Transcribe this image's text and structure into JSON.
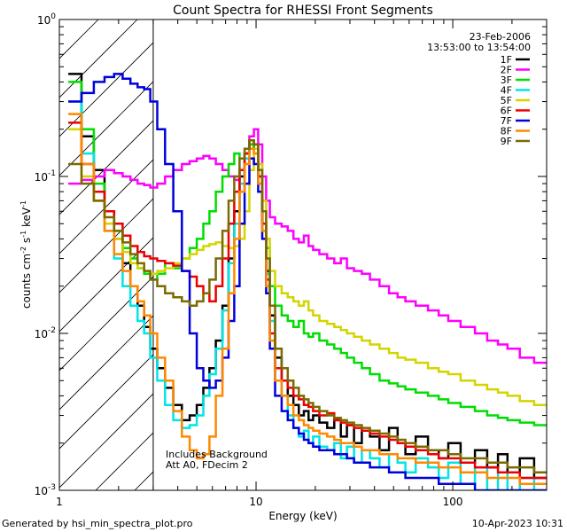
{
  "chart_data": {
    "type": "line",
    "title": "Count Spectra for RHESSI Front Segments",
    "date": "23-Feb-2006",
    "time_range": "13:53:00 to 13:54:00",
    "xlabel": "Energy (keV)",
    "ylabel": "counts cm^-2 s^-1 keV^-1",
    "ylabel_parts": {
      "main": "counts cm",
      "exp1": "-2",
      "s": " s",
      "exp2": "-1",
      "kev": " keV",
      "exp3": "-1"
    },
    "xscale": "log",
    "yscale": "log",
    "xlim": [
      1.0,
      300.0
    ],
    "ylim": [
      0.001,
      1.0
    ],
    "xticks": [
      {
        "value": 1,
        "label": "1"
      },
      {
        "value": 10,
        "label": "10"
      },
      {
        "value": 100,
        "label": "100"
      }
    ],
    "yticks": [
      {
        "value": 1.0,
        "base": "10",
        "exp": "0"
      },
      {
        "value": 0.1,
        "base": "10",
        "exp": "-1"
      },
      {
        "value": 0.01,
        "base": "10",
        "exp": "-2"
      },
      {
        "value": 0.001,
        "base": "10",
        "exp": "-3"
      }
    ],
    "shaded_region": [
      1.0,
      3.0
    ],
    "annotations": [
      "Includes Background",
      "Att A0, FDecim 2"
    ],
    "x": [
      1.2,
      1.4,
      1.6,
      1.8,
      2.0,
      2.2,
      2.4,
      2.6,
      2.8,
      3.0,
      3.3,
      3.6,
      4.0,
      4.4,
      4.8,
      5.2,
      5.6,
      6.0,
      6.5,
      7.0,
      7.5,
      8.0,
      8.5,
      9.0,
      9.5,
      10.0,
      10.5,
      11.0,
      11.5,
      12.0,
      13.0,
      14.0,
      15.0,
      16.0,
      17.0,
      18.0,
      19.0,
      20.0,
      22.0,
      24.0,
      26.0,
      28.0,
      30.0,
      33.0,
      36.0,
      40.0,
      45.0,
      50.0,
      55.0,
      60.0,
      70.0,
      80.0,
      90.0,
      100.0,
      120.0,
      140.0,
      160.0,
      180.0,
      200.0,
      240.0,
      280.0
    ],
    "series": [
      {
        "name": "1F",
        "color": "#000000",
        "values": [
          0.45,
          0.18,
          0.11,
          0.06,
          0.04,
          0.028,
          0.02,
          0.015,
          0.011,
          0.008,
          0.006,
          0.0045,
          0.0035,
          0.0028,
          0.003,
          0.0035,
          0.0045,
          0.006,
          0.009,
          0.015,
          0.03,
          0.06,
          0.1,
          0.14,
          0.16,
          0.15,
          0.1,
          0.05,
          0.025,
          0.013,
          0.007,
          0.005,
          0.004,
          0.0035,
          0.003,
          0.0032,
          0.0028,
          0.003,
          0.0027,
          0.0025,
          0.0028,
          0.0022,
          0.0026,
          0.002,
          0.0024,
          0.0022,
          0.0018,
          0.0025,
          0.002,
          0.0017,
          0.0022,
          0.0018,
          0.0016,
          0.002,
          0.0015,
          0.0018,
          0.0014,
          0.0017,
          0.0013,
          0.0016,
          0.0012
        ]
      },
      {
        "name": "2F",
        "color": "#ff00ff",
        "values": [
          0.09,
          0.095,
          0.1,
          0.11,
          0.105,
          0.1,
          0.095,
          0.09,
          0.088,
          0.085,
          0.09,
          0.1,
          0.11,
          0.12,
          0.125,
          0.13,
          0.135,
          0.13,
          0.12,
          0.11,
          0.1,
          0.095,
          0.11,
          0.14,
          0.18,
          0.2,
          0.16,
          0.1,
          0.07,
          0.055,
          0.05,
          0.048,
          0.045,
          0.04,
          0.038,
          0.042,
          0.036,
          0.034,
          0.032,
          0.03,
          0.028,
          0.03,
          0.026,
          0.025,
          0.024,
          0.022,
          0.02,
          0.018,
          0.017,
          0.016,
          0.015,
          0.014,
          0.013,
          0.012,
          0.011,
          0.01,
          0.009,
          0.0085,
          0.008,
          0.007,
          0.0065
        ]
      },
      {
        "name": "3F",
        "color": "#00dd00",
        "values": [
          0.4,
          0.2,
          0.09,
          0.06,
          0.045,
          0.035,
          0.03,
          0.026,
          0.024,
          0.022,
          0.024,
          0.028,
          0.026,
          0.03,
          0.035,
          0.04,
          0.05,
          0.06,
          0.08,
          0.1,
          0.12,
          0.14,
          0.13,
          0.14,
          0.16,
          0.15,
          0.1,
          0.06,
          0.035,
          0.02,
          0.015,
          0.013,
          0.012,
          0.011,
          0.012,
          0.01,
          0.0095,
          0.01,
          0.009,
          0.0085,
          0.008,
          0.0075,
          0.007,
          0.0065,
          0.006,
          0.0055,
          0.005,
          0.0048,
          0.0046,
          0.0044,
          0.0042,
          0.004,
          0.0038,
          0.0036,
          0.0034,
          0.0032,
          0.003,
          0.0029,
          0.0028,
          0.0027,
          0.0026
        ]
      },
      {
        "name": "4F",
        "color": "#00e5e5",
        "values": [
          0.3,
          0.14,
          0.08,
          0.045,
          0.03,
          0.02,
          0.015,
          0.012,
          0.01,
          0.007,
          0.005,
          0.0035,
          0.0028,
          0.0025,
          0.0026,
          0.003,
          0.004,
          0.0055,
          0.008,
          0.014,
          0.028,
          0.05,
          0.09,
          0.13,
          0.17,
          0.16,
          0.1,
          0.05,
          0.024,
          0.012,
          0.006,
          0.004,
          0.003,
          0.0025,
          0.0022,
          0.0024,
          0.002,
          0.0022,
          0.0019,
          0.0018,
          0.002,
          0.0016,
          0.0019,
          0.0015,
          0.0018,
          0.0016,
          0.0014,
          0.0017,
          0.0015,
          0.0013,
          0.0016,
          0.0014,
          0.0012,
          0.0015,
          0.0011,
          0.0014,
          0.001,
          0.0013,
          0.001,
          0.0012,
          0.001
        ]
      },
      {
        "name": "5F",
        "color": "#d4d400",
        "values": [
          0.2,
          0.1,
          0.07,
          0.05,
          0.04,
          0.033,
          0.028,
          0.026,
          0.025,
          0.024,
          0.025,
          0.026,
          0.028,
          0.03,
          0.032,
          0.034,
          0.036,
          0.037,
          0.038,
          0.036,
          0.035,
          0.036,
          0.04,
          0.06,
          0.11,
          0.15,
          0.12,
          0.07,
          0.04,
          0.025,
          0.02,
          0.018,
          0.017,
          0.016,
          0.015,
          0.016,
          0.014,
          0.013,
          0.012,
          0.0115,
          0.011,
          0.0105,
          0.01,
          0.0095,
          0.009,
          0.0085,
          0.008,
          0.0075,
          0.007,
          0.0068,
          0.0065,
          0.006,
          0.0057,
          0.0055,
          0.005,
          0.0047,
          0.0044,
          0.0042,
          0.004,
          0.0037,
          0.0035
        ]
      },
      {
        "name": "6F",
        "color": "#ee0000",
        "values": [
          0.22,
          0.12,
          0.08,
          0.06,
          0.05,
          0.042,
          0.036,
          0.033,
          0.031,
          0.03,
          0.029,
          0.028,
          0.027,
          0.025,
          0.023,
          0.02,
          0.018,
          0.016,
          0.02,
          0.03,
          0.05,
          0.08,
          0.11,
          0.14,
          0.17,
          0.16,
          0.1,
          0.05,
          0.022,
          0.01,
          0.006,
          0.005,
          0.0045,
          0.004,
          0.0038,
          0.0035,
          0.0034,
          0.0032,
          0.003,
          0.0031,
          0.0028,
          0.0027,
          0.0026,
          0.0025,
          0.0024,
          0.0023,
          0.0022,
          0.0021,
          0.002,
          0.0019,
          0.0018,
          0.0017,
          0.0016,
          0.0016,
          0.0015,
          0.0014,
          0.0014,
          0.0013,
          0.0013,
          0.0012,
          0.0012
        ]
      },
      {
        "name": "7F",
        "color": "#0000dd",
        "values": [
          0.3,
          0.34,
          0.4,
          0.43,
          0.45,
          0.42,
          0.39,
          0.37,
          0.36,
          0.3,
          0.2,
          0.12,
          0.06,
          0.025,
          0.01,
          0.006,
          0.005,
          0.0045,
          0.005,
          0.007,
          0.012,
          0.02,
          0.05,
          0.09,
          0.13,
          0.12,
          0.08,
          0.04,
          0.018,
          0.008,
          0.004,
          0.0032,
          0.0028,
          0.0025,
          0.0023,
          0.0021,
          0.002,
          0.0019,
          0.0018,
          0.0018,
          0.0017,
          0.0017,
          0.0016,
          0.0015,
          0.0015,
          0.0014,
          0.0014,
          0.0013,
          0.0013,
          0.0012,
          0.0012,
          0.0012,
          0.0011,
          0.0011,
          0.0011,
          0.001,
          0.001,
          0.001,
          0.001,
          0.001,
          0.001
        ]
      },
      {
        "name": "8F",
        "color": "#ff8800",
        "values": [
          0.25,
          0.12,
          0.07,
          0.045,
          0.032,
          0.025,
          0.02,
          0.016,
          0.013,
          0.01,
          0.007,
          0.005,
          0.0032,
          0.0022,
          0.0018,
          0.0016,
          0.0017,
          0.0022,
          0.004,
          0.008,
          0.018,
          0.04,
          0.08,
          0.12,
          0.15,
          0.14,
          0.09,
          0.045,
          0.02,
          0.009,
          0.005,
          0.004,
          0.0035,
          0.003,
          0.0028,
          0.0026,
          0.0025,
          0.0024,
          0.0023,
          0.0022,
          0.0021,
          0.002,
          0.002,
          0.0019,
          0.0018,
          0.0018,
          0.0017,
          0.0017,
          0.0016,
          0.0016,
          0.0015,
          0.0015,
          0.0014,
          0.0014,
          0.0013,
          0.0013,
          0.0012,
          0.0012,
          0.0012,
          0.0011,
          0.0011
        ]
      },
      {
        "name": "9F",
        "color": "#7a6a00",
        "values": [
          0.12,
          0.09,
          0.07,
          0.055,
          0.045,
          0.038,
          0.032,
          0.028,
          0.025,
          0.022,
          0.02,
          0.018,
          0.017,
          0.016,
          0.015,
          0.016,
          0.018,
          0.022,
          0.03,
          0.045,
          0.07,
          0.1,
          0.13,
          0.15,
          0.17,
          0.16,
          0.11,
          0.06,
          0.03,
          0.015,
          0.008,
          0.006,
          0.005,
          0.0045,
          0.004,
          0.0038,
          0.0036,
          0.0034,
          0.0032,
          0.003,
          0.0029,
          0.0028,
          0.0027,
          0.0026,
          0.0025,
          0.0024,
          0.0023,
          0.0022,
          0.0021,
          0.002,
          0.0019,
          0.0018,
          0.0018,
          0.0017,
          0.0016,
          0.0016,
          0.0015,
          0.0015,
          0.0014,
          0.0014,
          0.0013
        ]
      }
    ]
  },
  "footer": {
    "left": "Generated by hsi_min_spectra_plot.pro",
    "right": "10-Apr-2023 10:31"
  }
}
